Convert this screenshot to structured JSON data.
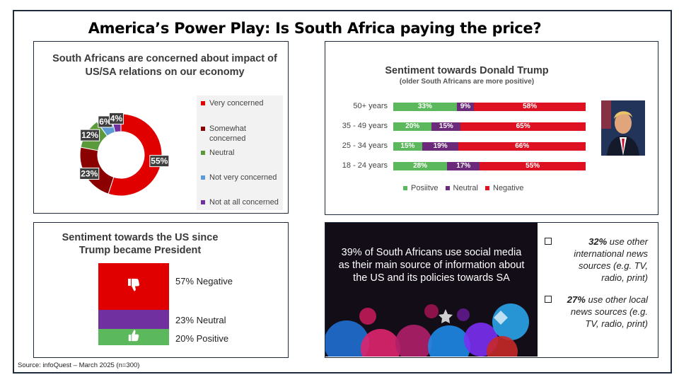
{
  "page": {
    "title": "America’s Power Play:  Is South Africa paying the price?",
    "source": "Source:  infoQuest – March 2025 (n=300)"
  },
  "colors": {
    "red": "#e00000",
    "dark_red": "#8b0000",
    "green": "#5b9a3b",
    "light_blue": "#5b9bd5",
    "purple": "#7030a0",
    "pos_green": "#5cb85c",
    "neg_red": "#dd1122"
  },
  "chart_data": [
    {
      "type": "pie",
      "variant": "donut",
      "title": "South Africans are concerned about impact of US/SA relations on our economy",
      "categories": [
        "Very concerned",
        "Somewhat concerned",
        "Neutral",
        "Not very concerned",
        "Not at all concerned"
      ],
      "values": [
        55,
        23,
        12,
        6,
        4
      ],
      "data_labels": [
        "55%",
        "23%",
        "12%",
        "6%",
        "4%"
      ],
      "legend": "right"
    },
    {
      "type": "bar",
      "orientation": "horizontal",
      "stacked": true,
      "title": "Sentiment towards Donald Trump",
      "subtitle": "(older South Africans are more positive)",
      "categories": [
        "50+ years",
        "35 - 49 years",
        "25 - 34 years",
        "18 - 24 years"
      ],
      "series": [
        {
          "name": "Posiitve",
          "values": [
            33,
            20,
            15,
            28
          ]
        },
        {
          "name": "Neutral",
          "values": [
            9,
            15,
            19,
            17
          ]
        },
        {
          "name": "Negative",
          "values": [
            58,
            65,
            66,
            55
          ]
        }
      ],
      "legend": "bottom"
    },
    {
      "type": "bar",
      "stacked": true,
      "title": "Sentiment towards the US since Trump became President",
      "categories": [
        "Negative",
        "Neutral",
        "Positive"
      ],
      "values": [
        57,
        23,
        20
      ],
      "data_labels": [
        "57% Negative",
        "23% Neutral",
        "20% Positive"
      ]
    }
  ],
  "concern": {
    "title": "South Africans are concerned about impact of US/SA relations on our economy",
    "legend": [
      "Very concerned",
      "Somewhat concerned",
      "Neutral",
      "Not very concerned",
      "Not at all concerned"
    ],
    "labels": [
      "55%",
      "23%",
      "12%",
      "6%",
      "4%"
    ]
  },
  "trump": {
    "title": "Sentiment towards Donald Trump",
    "subtitle": "(older South Africans are more positive)",
    "rows": [
      "50+ years",
      "35 - 49 years",
      "25 - 34 years",
      "18 - 24 years"
    ],
    "legend": [
      "Posiitve",
      "Neutral",
      "Negative"
    ]
  },
  "us": {
    "title": "Sentiment towards the US since Trump became President",
    "labels": [
      "57% Negative",
      "23% Neutral",
      "20% Positive"
    ]
  },
  "social": {
    "headline": "39% of South Africans use social media as their main source of information about the US and its policies towards SA",
    "stats": [
      {
        "bold": "32%",
        "text": "use other international news sources (e.g. TV, radio, print)"
      },
      {
        "bold": "27%",
        "text": "use other local news sources (e.g. TV, radio, print)"
      }
    ]
  }
}
